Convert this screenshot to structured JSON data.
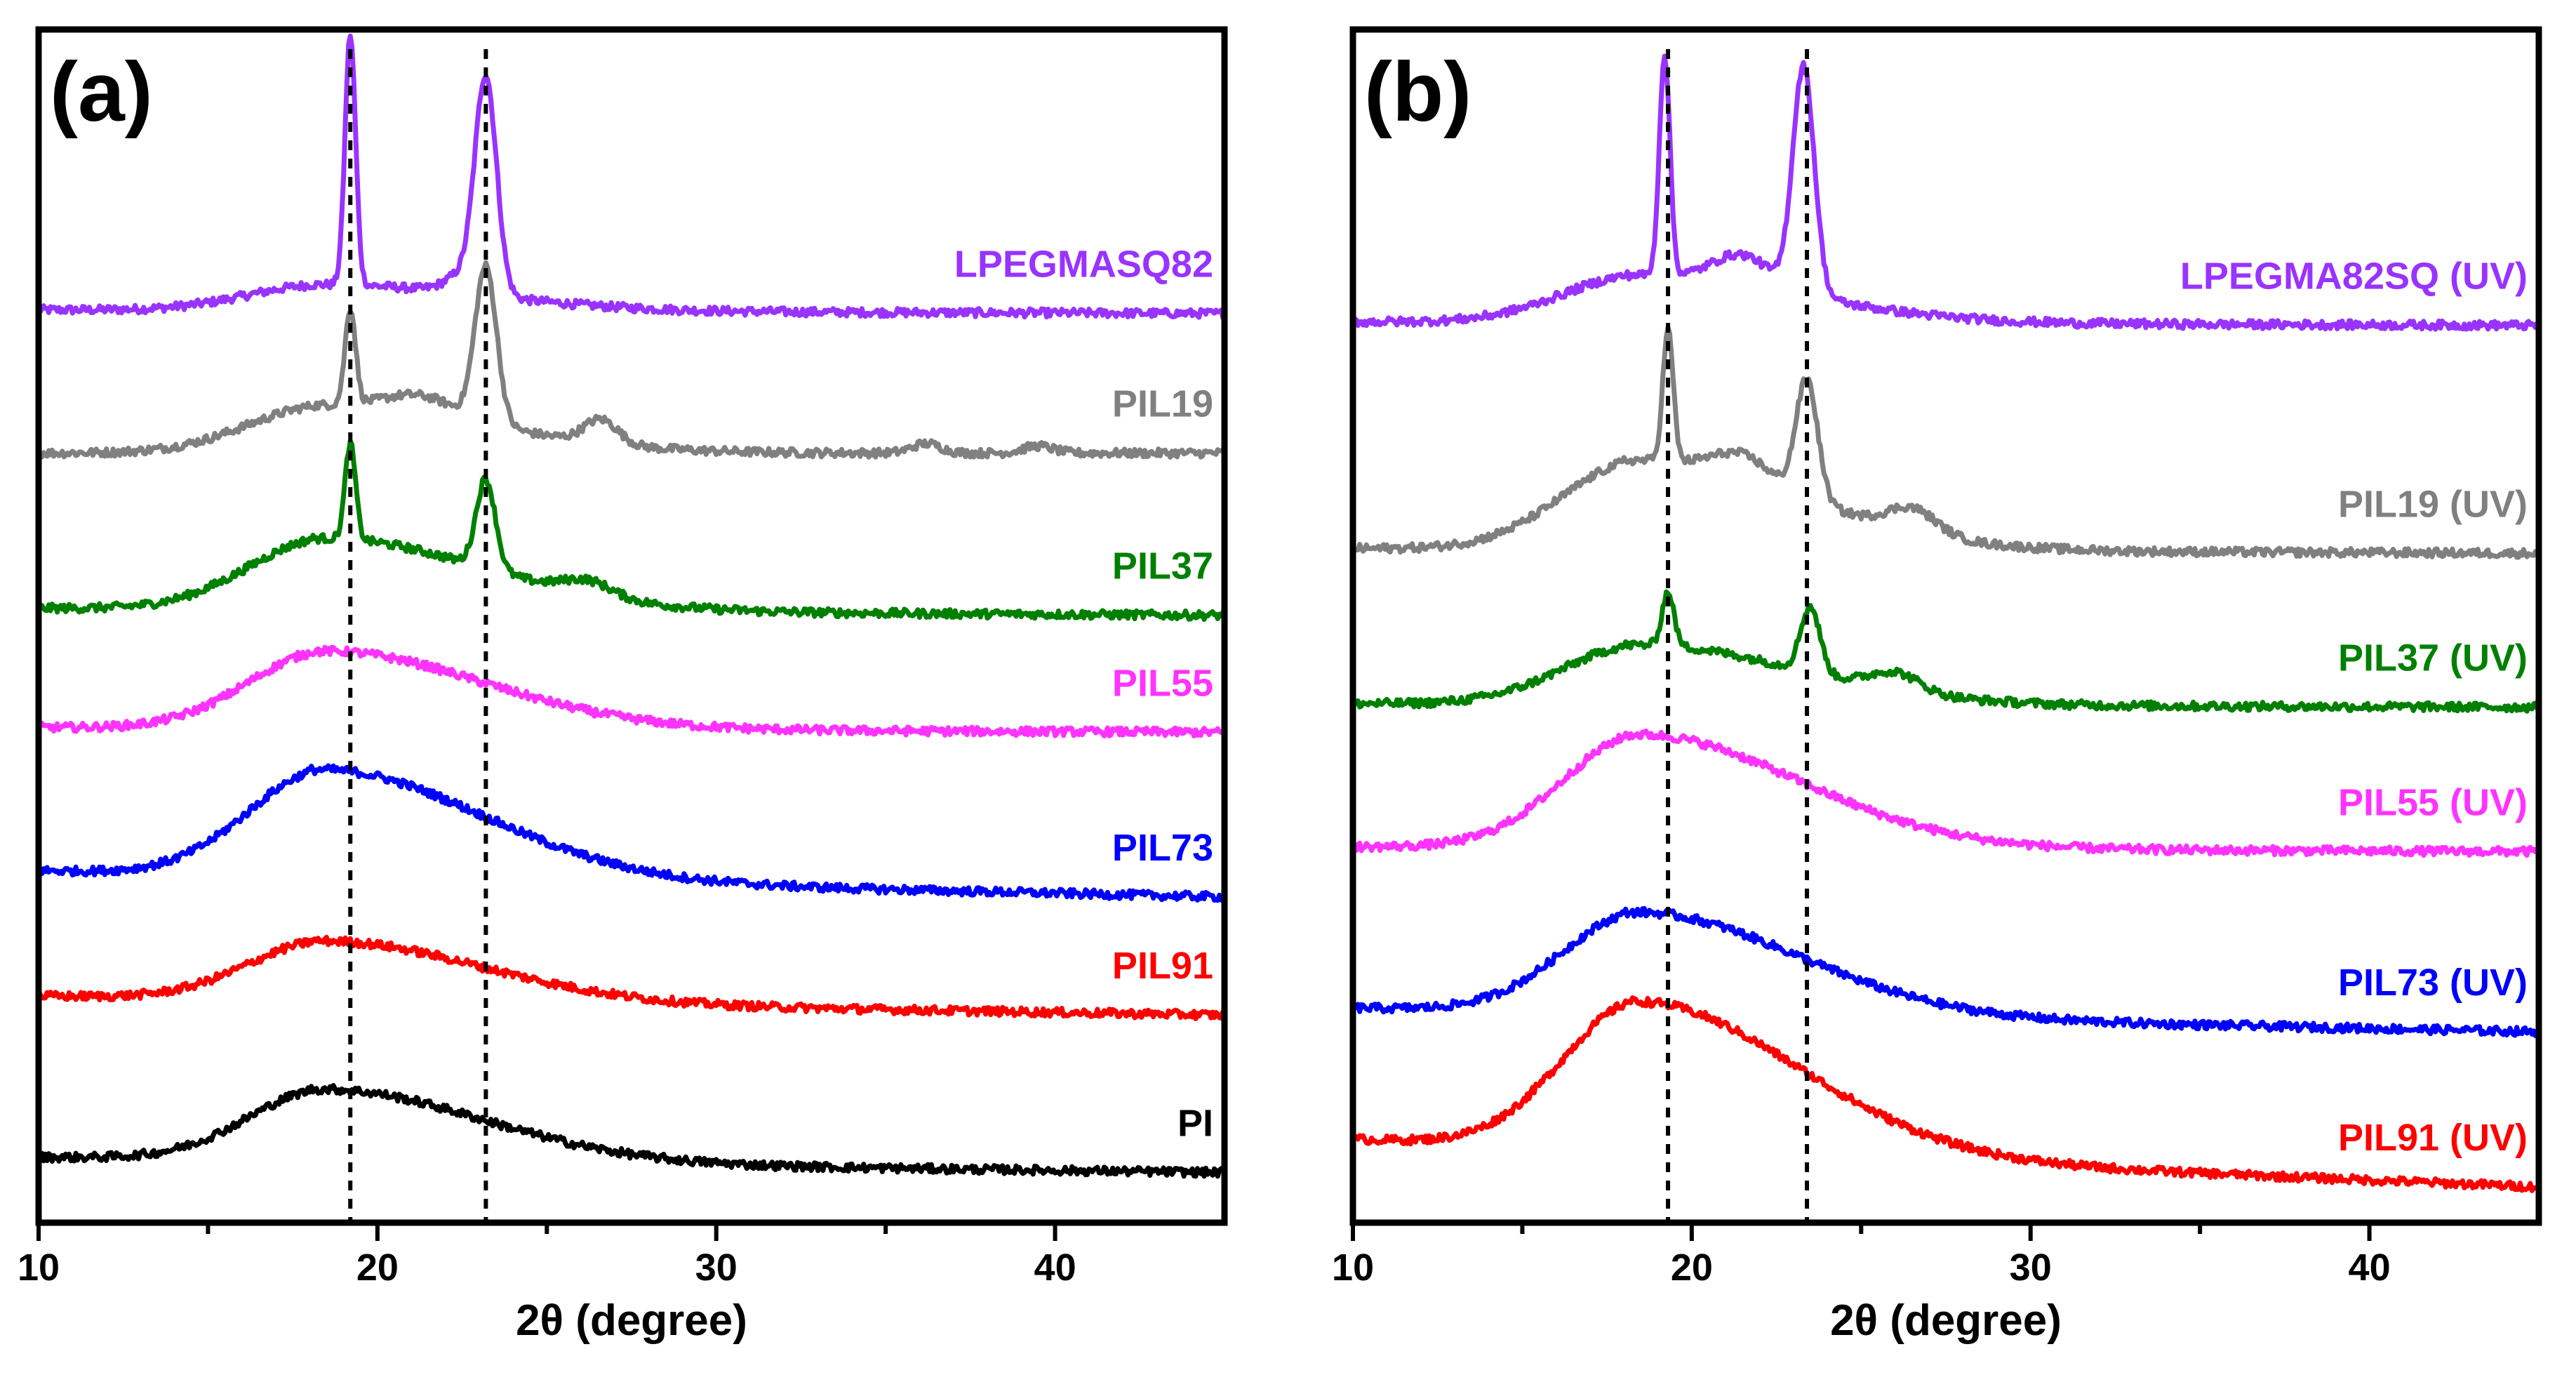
{
  "chart_data": [
    {
      "type": "line",
      "panel_label": "(a)",
      "xlabel": "2θ (degree)",
      "ylabel": "",
      "xlim": [
        10,
        45
      ],
      "ylim": [
        0,
        100
      ],
      "x_ticks": [
        10,
        20,
        30,
        40
      ],
      "x_minor_ticks": [
        15,
        25,
        35
      ],
      "grid": false,
      "reference_lines_x": [
        19.2,
        23.2
      ],
      "series": [
        {
          "name": "LPEGMASQ82",
          "color": "#9933ff",
          "baseline": 76.5,
          "end_offset": -0.3,
          "amorphous": 2.2,
          "peaks": [
            [
              19.2,
              21,
              0.22
            ],
            [
              22.5,
              1.5,
              0.7
            ],
            [
              23.2,
              18,
              0.45
            ]
          ]
        },
        {
          "name": "PIL19",
          "color": "#808080",
          "baseline": 64.5,
          "end_offset": 0,
          "amorphous": 4,
          "peaks": [
            [
              19.2,
              8,
              0.22
            ],
            [
              21.3,
              1.5,
              1.5
            ],
            [
              23.2,
              13,
              0.45
            ],
            [
              26.6,
              2,
              0.7
            ],
            [
              36.2,
              0.8,
              0.6
            ],
            [
              39.5,
              0.6,
              0.6
            ]
          ]
        },
        {
          "name": "PIL37",
          "color": "#008000",
          "baseline": 51.5,
          "end_offset": -0.6,
          "amorphous": 6,
          "peaks": [
            [
              19.2,
              8,
              0.22
            ],
            [
              23.2,
              7.5,
              0.4
            ],
            [
              26.2,
              1.2,
              1.0
            ]
          ]
        },
        {
          "name": "PIL55",
          "color": "#ff33ff",
          "baseline": 41.5,
          "end_offset": -0.4,
          "amorphous": 6.5,
          "peaks": []
        },
        {
          "name": "PIL73",
          "color": "#0000ff",
          "baseline": 29.5,
          "end_offset": -2.2,
          "amorphous": 9,
          "peaks": []
        },
        {
          "name": "PIL91",
          "color": "#ff0000",
          "baseline": 19,
          "end_offset": -1.6,
          "amorphous": 5,
          "peaks": []
        },
        {
          "name": "PI",
          "color": "#000000",
          "baseline": 5.5,
          "end_offset": -1.3,
          "amorphous": 6,
          "peaks": []
        }
      ]
    },
    {
      "type": "line",
      "panel_label": "(b)",
      "xlabel": "2θ (degree)",
      "ylabel": "",
      "xlim": [
        10,
        45
      ],
      "ylim": [
        0,
        100
      ],
      "x_ticks": [
        10,
        20,
        30,
        40
      ],
      "x_minor_ticks": [
        15,
        25,
        35
      ],
      "grid": false,
      "reference_lines_x": [
        19.3,
        23.4
      ],
      "series": [
        {
          "name": "LPEGMA82SQ (UV)",
          "color": "#9933ff",
          "baseline": 75.5,
          "end_offset": -0.3,
          "amorphous": 4,
          "peaks": [
            [
              19.2,
              18.5,
              0.22
            ],
            [
              21.5,
              2.5,
              1.2
            ],
            [
              23.3,
              19,
              0.45
            ]
          ]
        },
        {
          "name": "PIL19 (UV)",
          "color": "#808080",
          "baseline": 56.5,
          "end_offset": -0.4,
          "amorphous": 7.5,
          "peaks": [
            [
              19.3,
              11,
              0.22
            ],
            [
              21.5,
              2,
              1.2
            ],
            [
              23.4,
              10,
              0.45
            ],
            [
              26.5,
              2,
              1.0
            ]
          ]
        },
        {
          "name": "PIL37 (UV)",
          "color": "#008000",
          "baseline": 43.5,
          "end_offset": -0.3,
          "amorphous": 5,
          "peaks": [
            [
              19.3,
              4.5,
              0.25
            ],
            [
              23.5,
              5.5,
              0.4
            ],
            [
              26.0,
              1.5,
              1.0
            ]
          ]
        },
        {
          "name": "PIL55 (UV)",
          "color": "#ff33ff",
          "baseline": 31.5,
          "end_offset": -0.4,
          "amorphous": 9.5,
          "peaks": []
        },
        {
          "name": "PIL73 (UV)",
          "color": "#0000ff",
          "baseline": 18,
          "end_offset": -2,
          "amorphous": 8.5,
          "peaks": []
        },
        {
          "name": "PIL91 (UV)",
          "color": "#ff0000",
          "baseline": 7,
          "end_offset": -4,
          "amorphous": 12.5,
          "peaks": []
        }
      ]
    }
  ]
}
